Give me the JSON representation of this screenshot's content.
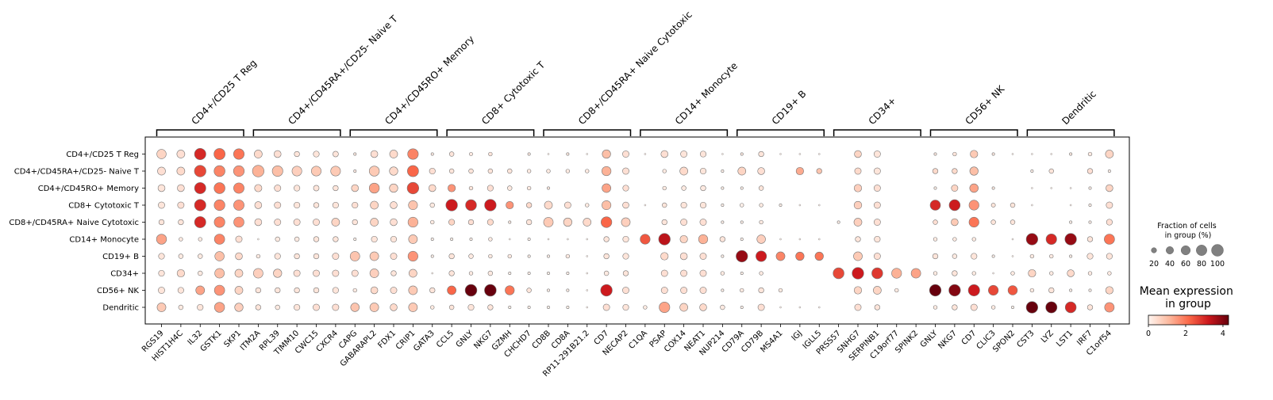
{
  "chart_data": {
    "type": "dotplot",
    "rows": [
      "CD4+/CD25 T Reg",
      "CD4+/CD45RA+/CD25- Naive T",
      "CD4+/CD45RO+ Memory",
      "CD8+ Cytotoxic T",
      "CD8+/CD45RA+ Naive Cytotoxic",
      "CD14+ Monocyte",
      "CD19+ B",
      "CD34+",
      "CD56+ NK",
      "Dendritic"
    ],
    "genes": [
      "RGS19",
      "HIST1H4C",
      "IL32",
      "GSTK1",
      "SKP1",
      "ITM2A",
      "RPL39",
      "TIMM10",
      "CWC15",
      "CXCR4",
      "CAPG",
      "GABARAPL2",
      "FDX1",
      "CRIP1",
      "GATA3",
      "CCL5",
      "GNLY",
      "NKG7",
      "GZMH",
      "CHCHD7",
      "CD8B",
      "CD8A",
      "RP11-291B21.2",
      "CD7",
      "NECAP2",
      "C1QA",
      "PSAP",
      "COX14",
      "NEAT1",
      "NUP214",
      "CD79A",
      "CD79B",
      "MS4A1",
      "IGJ",
      "IGLL5",
      "PRSS57",
      "SNHG7",
      "SERPINB1",
      "C19orf77",
      "SPINK2",
      "GNLY",
      "NKG7",
      "CD7",
      "CLIC3",
      "SPON2",
      "CST3",
      "LYZ",
      "LST1",
      "IRF7",
      "C1orf54"
    ],
    "groups": [
      {
        "label": "CD4+/CD25 T Reg",
        "start": 0,
        "end": 4
      },
      {
        "label": "CD4+/CD45RA+/CD25- Naive T",
        "start": 5,
        "end": 9
      },
      {
        "label": "CD4+/CD45RO+ Memory",
        "start": 10,
        "end": 14
      },
      {
        "label": "CD8+ Cytotoxic T",
        "start": 15,
        "end": 19
      },
      {
        "label": "CD8+/CD45RA+ Naive Cytotoxic",
        "start": 20,
        "end": 24
      },
      {
        "label": "CD14+ Monocyte",
        "start": 25,
        "end": 29
      },
      {
        "label": "CD19+ B",
        "start": 30,
        "end": 34
      },
      {
        "label": "CD34+",
        "start": 35,
        "end": 39
      },
      {
        "label": "CD56+ NK",
        "start": 40,
        "end": 44
      },
      {
        "label": "Dendritic",
        "start": 45,
        "end": 49
      }
    ],
    "fraction": [
      [
        0.62,
        0.45,
        0.92,
        0.88,
        0.8,
        0.45,
        0.35,
        0.2,
        0.25,
        0.22,
        0.05,
        0.35,
        0.45,
        0.8,
        0.05,
        0.15,
        0.08,
        0.1,
        0,
        0.05,
        0.02,
        0.05,
        0.02,
        0.5,
        0.3,
        0.02,
        0.35,
        0.3,
        0.25,
        0.02,
        0.05,
        0.2,
        0.02,
        0.02,
        0.02,
        0,
        0.35,
        0.3,
        0,
        0,
        0.05,
        0.1,
        0.4,
        0.05,
        0.02,
        0.02,
        0.02,
        0.05,
        0.1,
        0.45
      ],
      [
        0.45,
        0.45,
        0.95,
        0.85,
        0.82,
        0.95,
        0.8,
        0.68,
        0.68,
        0.68,
        0.05,
        0.72,
        0.5,
        0.88,
        0.25,
        0.15,
        0.15,
        0.15,
        0.15,
        0.1,
        0.1,
        0.1,
        0.1,
        0.6,
        0.3,
        0,
        0.1,
        0.45,
        0.25,
        0.05,
        0.45,
        0.35,
        0,
        0.4,
        0.2,
        0,
        0.3,
        0.3,
        0,
        0,
        0.2,
        0.2,
        0.5,
        0,
        0,
        0.05,
        0.15,
        0,
        0.2,
        0.05
      ],
      [
        0.35,
        0.35,
        0.9,
        0.85,
        0.78,
        0.38,
        0.3,
        0.25,
        0.22,
        0.2,
        0.35,
        0.72,
        0.5,
        0.95,
        0.35,
        0.4,
        0.1,
        0.25,
        0.15,
        0.1,
        0.05,
        0,
        0,
        0.55,
        0.25,
        0,
        0.1,
        0.15,
        0.2,
        0.05,
        0.05,
        0.15,
        0,
        0,
        0,
        0,
        0.4,
        0.3,
        0,
        0,
        0.05,
        0.3,
        0.52,
        0.05,
        0,
        0.02,
        0.02,
        0.02,
        0.05,
        0.35
      ],
      [
        0.3,
        0.3,
        0.92,
        0.82,
        0.78,
        0.35,
        0.3,
        0.25,
        0.2,
        0.25,
        0.25,
        0.45,
        0.35,
        0.58,
        0.15,
        0.95,
        0.85,
        0.95,
        0.4,
        0.2,
        0.45,
        0.3,
        0.1,
        0.58,
        0.28,
        0.02,
        0.15,
        0.25,
        0.25,
        0.05,
        0.1,
        0.1,
        0.05,
        0.02,
        0.02,
        0,
        0.42,
        0.3,
        0,
        0,
        0.75,
        0.85,
        0.7,
        0.12,
        0.15,
        0.02,
        0,
        0.02,
        0.05,
        0.3
      ],
      [
        0.2,
        0.2,
        0.9,
        0.8,
        0.75,
        0.35,
        0.3,
        0.3,
        0.3,
        0.45,
        0.2,
        0.45,
        0.35,
        0.7,
        0.1,
        0.25,
        0.2,
        0.25,
        0.05,
        0.2,
        0.65,
        0.5,
        0.45,
        0.82,
        0.55,
        0,
        0.2,
        0.3,
        0.3,
        0.05,
        0.05,
        0.1,
        0,
        0,
        0,
        0.05,
        0.45,
        0.3,
        0,
        0,
        0.15,
        0.35,
        0.7,
        0.15,
        0.15,
        0,
        0,
        0.05,
        0.05,
        0.25
      ],
      [
        0.72,
        0.1,
        0.1,
        0.75,
        0.3,
        0.02,
        0.15,
        0.15,
        0.2,
        0.2,
        0.05,
        0.25,
        0.25,
        0.55,
        0.05,
        0.05,
        0.05,
        0.1,
        0.02,
        0.05,
        0.02,
        0.02,
        0.02,
        0.2,
        0.25,
        0.7,
        0.95,
        0.4,
        0.6,
        0.2,
        0.05,
        0.52,
        0.02,
        0.02,
        0.02,
        0,
        0.2,
        0.25,
        0,
        0,
        0.1,
        0.1,
        0.1,
        0,
        0.02,
        0.95,
        0.8,
        0.95,
        0.2,
        0.75
      ],
      [
        0.25,
        0.15,
        0.15,
        0.62,
        0.35,
        0.1,
        0.25,
        0.2,
        0.2,
        0.3,
        0.65,
        0.55,
        0.3,
        0.7,
        0.05,
        0.2,
        0.15,
        0.1,
        0.1,
        0.05,
        0.05,
        0.1,
        0.02,
        0.2,
        0.25,
        0,
        0.4,
        0.35,
        0.3,
        0.05,
        0.95,
        0.8,
        0.55,
        0.5,
        0.5,
        0,
        0.55,
        0.3,
        0,
        0,
        0.2,
        0.15,
        0.25,
        0.05,
        0.02,
        0.1,
        0.1,
        0.05,
        0.25,
        0.25
      ],
      [
        0.25,
        0.4,
        0.15,
        0.65,
        0.45,
        0.65,
        0.5,
        0.3,
        0.3,
        0.3,
        0.3,
        0.55,
        0.2,
        0.45,
        0.02,
        0.2,
        0.1,
        0.15,
        0.05,
        0.05,
        0.05,
        0.05,
        0.02,
        0.15,
        0.2,
        0,
        0.3,
        0.3,
        0.3,
        0.1,
        0.05,
        0.1,
        0,
        0,
        0,
        0.85,
        0.95,
        0.85,
        0.7,
        0.65,
        0.1,
        0.2,
        0.1,
        0.02,
        0.1,
        0.4,
        0.1,
        0.35,
        0.1,
        0.1
      ],
      [
        0.3,
        0.25,
        0.55,
        0.75,
        0.45,
        0.2,
        0.2,
        0.2,
        0.2,
        0.25,
        0.1,
        0.35,
        0.3,
        0.55,
        0.2,
        0.55,
        0.98,
        0.98,
        0.6,
        0.15,
        0.05,
        0.05,
        0.02,
        0.95,
        0.3,
        0,
        0.3,
        0.3,
        0.3,
        0.05,
        0.1,
        0.2,
        0.1,
        0,
        0,
        0,
        0.4,
        0.45,
        0.1,
        0,
        0.95,
        0.95,
        0.92,
        0.7,
        0.62,
        0.1,
        0.2,
        0.05,
        0.05,
        0.4
      ],
      [
        0.55,
        0.15,
        0.25,
        0.72,
        0.5,
        0.2,
        0.15,
        0.25,
        0.3,
        0.3,
        0.52,
        0.55,
        0.35,
        0.55,
        0.1,
        0.15,
        0.25,
        0.2,
        0.05,
        0.05,
        0.05,
        0.05,
        0.02,
        0.3,
        0.25,
        0.1,
        0.8,
        0.45,
        0.35,
        0.15,
        0.05,
        0.3,
        0.02,
        0.02,
        0.02,
        0,
        0.3,
        0.2,
        0,
        0,
        0.1,
        0.2,
        0.3,
        0.1,
        0.05,
        0.95,
        0.9,
        0.85,
        0.2,
        0.65
      ]
    ],
    "mean_expression": [
      [
        0.6,
        0.4,
        3.0,
        2.2,
        2.0,
        0.5,
        0.4,
        0.3,
        0.3,
        0.3,
        0.2,
        0.4,
        0.5,
        1.8,
        0.2,
        0.3,
        0.2,
        0.3,
        0.1,
        0.2,
        0.1,
        0.2,
        0.1,
        1.0,
        0.4,
        0.1,
        0.4,
        0.3,
        0.3,
        0.1,
        0.2,
        0.3,
        0.1,
        0.1,
        0.1,
        0,
        0.6,
        0.3,
        0,
        0,
        0.2,
        0.3,
        0.8,
        0.2,
        0.1,
        0.1,
        0.1,
        0.2,
        0.2,
        0.6
      ],
      [
        0.4,
        0.5,
        2.6,
        1.8,
        1.6,
        1.2,
        1.0,
        0.7,
        0.8,
        0.8,
        0.2,
        0.8,
        0.5,
        2.2,
        0.4,
        0.3,
        0.3,
        0.3,
        0.3,
        0.2,
        0.2,
        0.2,
        0.2,
        1.2,
        0.4,
        0,
        0.2,
        0.5,
        0.3,
        0.1,
        0.6,
        0.4,
        0,
        1.3,
        0.9,
        0,
        0.5,
        0.3,
        0,
        0,
        0.5,
        0.5,
        1.0,
        0,
        0,
        0.1,
        0.3,
        0,
        0.4,
        0.1
      ],
      [
        0.3,
        0.4,
        3.0,
        2.0,
        1.8,
        0.5,
        0.4,
        0.3,
        0.3,
        0.3,
        0.6,
        1.4,
        0.6,
        2.6,
        0.5,
        1.6,
        0.3,
        0.4,
        0.2,
        0.2,
        0.2,
        0,
        0,
        1.4,
        0.4,
        0,
        0.2,
        0.2,
        0.2,
        0.1,
        0.1,
        0.3,
        0,
        0,
        0,
        0,
        0.7,
        0.4,
        0,
        0,
        0.1,
        0.6,
        1.4,
        0.2,
        0,
        0.1,
        0.1,
        0.1,
        0.1,
        0.6
      ],
      [
        0.3,
        0.4,
        3.0,
        1.8,
        1.6,
        0.4,
        0.4,
        0.3,
        0.3,
        0.3,
        0.4,
        0.6,
        0.4,
        0.9,
        0.2,
        3.2,
        3.0,
        3.2,
        1.6,
        0.5,
        0.5,
        0.4,
        0.2,
        1.0,
        0.4,
        0.1,
        0.3,
        0.3,
        0.3,
        0.1,
        0.1,
        0.2,
        0.1,
        0.1,
        0.1,
        0,
        0.7,
        0.4,
        0,
        0,
        3.0,
        3.2,
        1.6,
        0.3,
        0.3,
        0.1,
        0,
        0.1,
        0.1,
        0.4
      ],
      [
        0.3,
        0.3,
        3.0,
        1.8,
        1.6,
        0.4,
        0.4,
        0.4,
        0.4,
        0.6,
        0.3,
        0.6,
        0.4,
        1.2,
        0.2,
        0.6,
        0.4,
        0.5,
        0.2,
        0.3,
        0.8,
        0.6,
        0.5,
        2.2,
        0.7,
        0,
        0.3,
        0.4,
        0.4,
        0.1,
        0.1,
        0.2,
        0,
        0,
        0,
        0.1,
        0.7,
        0.4,
        0,
        0,
        0.4,
        0.8,
        2.0,
        0.3,
        0.3,
        0,
        0,
        0.1,
        0.1,
        0.4
      ],
      [
        1.4,
        0.2,
        0.2,
        1.8,
        0.4,
        0.1,
        0.2,
        0.2,
        0.3,
        0.3,
        0.1,
        0.3,
        0.3,
        0.8,
        0.1,
        0.1,
        0.1,
        0.2,
        0.1,
        0.1,
        0.1,
        0.1,
        0.1,
        0.3,
        0.3,
        2.4,
        3.4,
        0.6,
        1.2,
        0.3,
        0.1,
        0.7,
        0.1,
        0.1,
        0.1,
        0,
        0.3,
        0.3,
        0,
        0,
        0.2,
        0.2,
        0.2,
        0,
        0.1,
        3.8,
        3.0,
        3.8,
        0.3,
        2.0
      ],
      [
        0.3,
        0.2,
        0.2,
        1.0,
        0.5,
        0.2,
        0.3,
        0.3,
        0.3,
        0.4,
        0.9,
        0.8,
        0.4,
        1.6,
        0.1,
        0.3,
        0.2,
        0.2,
        0.2,
        0.1,
        0.1,
        0.2,
        0.1,
        0.3,
        0.3,
        0,
        0.5,
        0.4,
        0.4,
        0.1,
        3.8,
        3.2,
        1.8,
        2.0,
        2.0,
        0,
        0.8,
        0.4,
        0,
        0,
        0.3,
        0.2,
        0.3,
        0.1,
        0.1,
        0.2,
        0.2,
        0.1,
        0.3,
        0.3
      ],
      [
        0.3,
        0.5,
        0.2,
        1.0,
        0.6,
        0.7,
        0.6,
        0.4,
        0.4,
        0.4,
        0.4,
        0.7,
        0.3,
        0.6,
        0.1,
        0.3,
        0.2,
        0.2,
        0.1,
        0.1,
        0.1,
        0.1,
        0.1,
        0.2,
        0.3,
        0,
        0.4,
        0.4,
        0.4,
        0.2,
        0.1,
        0.2,
        0,
        0,
        0,
        2.6,
        3.2,
        2.8,
        1.2,
        1.4,
        0.2,
        0.3,
        0.2,
        0.1,
        0.2,
        0.6,
        0.2,
        0.5,
        0.2,
        0.2
      ],
      [
        0.3,
        0.3,
        1.4,
        1.6,
        0.6,
        0.3,
        0.3,
        0.3,
        0.3,
        0.3,
        0.2,
        0.5,
        0.4,
        0.8,
        0.3,
        2.2,
        4.3,
        4.3,
        2.0,
        0.3,
        0.1,
        0.1,
        0.1,
        3.2,
        0.4,
        0,
        0.4,
        0.4,
        0.4,
        0.1,
        0.2,
        0.3,
        0.2,
        0,
        0,
        0,
        0.6,
        0.6,
        0.2,
        0,
        4.3,
        4.0,
        3.2,
        2.6,
        2.4,
        0.2,
        0.3,
        0.1,
        0.1,
        0.6
      ],
      [
        0.8,
        0.2,
        0.3,
        1.4,
        0.7,
        0.3,
        0.2,
        0.3,
        0.4,
        0.4,
        0.9,
        0.8,
        0.5,
        0.8,
        0.2,
        0.3,
        0.3,
        0.3,
        0.1,
        0.1,
        0.1,
        0.1,
        0.1,
        0.4,
        0.3,
        0.2,
        1.4,
        0.6,
        0.5,
        0.2,
        0.1,
        0.4,
        0.1,
        0.1,
        0.1,
        0,
        0.4,
        0.3,
        0,
        0,
        0.2,
        0.3,
        0.4,
        0.2,
        0.1,
        4.3,
        4.3,
        3.0,
        0.3,
        1.6
      ]
    ],
    "size_legend": {
      "title": "Fraction of cells\nin group (%)",
      "values": [
        20,
        40,
        60,
        80,
        100
      ]
    },
    "color_legend": {
      "title": "Mean expression\nin group",
      "ticks": [
        0,
        2,
        4
      ],
      "range": [
        0,
        4.3
      ],
      "colormap": "Reds",
      "stops": [
        "#fff5f0",
        "#fcbba1",
        "#fb6a4a",
        "#cb181d",
        "#67000d"
      ]
    },
    "dot_edge_color": "#777777",
    "grid": false
  }
}
